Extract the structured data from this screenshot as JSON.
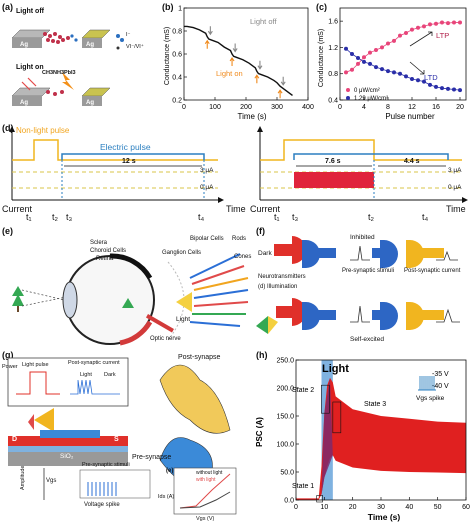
{
  "panel_labels": {
    "a": "(a)",
    "b": "(b)",
    "c": "(c)",
    "d": "(d)",
    "e": "(e)",
    "f": "(f)",
    "g": "(g)",
    "h": "(h)"
  },
  "panel_a": {
    "light_off": "Light off",
    "light_on": "Light on",
    "compound": "CH3NH3PbI3",
    "electrode": "Ag",
    "legend_ion": "I⁻",
    "legend_vac": "VI⁻/VI⁺"
  },
  "panel_b": {
    "chart_data": {
      "type": "line",
      "xlabel": "Time (s)",
      "ylabel": "Conductance (mS)",
      "xlim": [
        0,
        400
      ],
      "ylim": [
        0.2,
        1.0
      ],
      "xticks": [
        0,
        100,
        200,
        300,
        400
      ],
      "yticks": [
        0.2,
        0.4,
        0.6,
        0.8,
        1.0
      ],
      "x": [
        0,
        10,
        30,
        50,
        70,
        75,
        80,
        90,
        110,
        130,
        150,
        155,
        160,
        170,
        190,
        210,
        230,
        235,
        240,
        250,
        270,
        290,
        300,
        310,
        330,
        350
      ],
      "y": [
        0.84,
        0.84,
        0.83,
        0.81,
        0.78,
        0.75,
        0.73,
        0.72,
        0.7,
        0.66,
        0.63,
        0.6,
        0.58,
        0.57,
        0.55,
        0.52,
        0.48,
        0.45,
        0.43,
        0.42,
        0.4,
        0.37,
        0.35,
        0.32,
        0.28,
        0.24
      ],
      "light_on_times": [
        75,
        155,
        235,
        310
      ],
      "light_off_times": [
        85,
        165,
        245,
        320
      ],
      "annotation_off": "Light off",
      "annotation_on": "Light on"
    }
  },
  "panel_c": {
    "chart_data": {
      "type": "scatter",
      "xlabel": "Pulse number",
      "ylabel": "Conductance (mS)",
      "xlim": [
        0,
        21
      ],
      "ylim": [
        0.4,
        1.8
      ],
      "xticks": [
        0,
        4,
        8,
        12,
        16,
        20
      ],
      "yticks": [
        0.4,
        0.8,
        1.2,
        1.6
      ],
      "series": [
        {
          "name": "0 μW/cm²",
          "color": "#e8457a",
          "x": [
            1,
            2,
            3,
            4,
            5,
            6,
            7,
            8,
            9,
            10,
            11,
            12,
            13,
            14,
            15,
            16,
            17,
            18,
            19,
            20
          ],
          "y": [
            0.82,
            0.86,
            0.95,
            1.05,
            1.12,
            1.16,
            1.2,
            1.26,
            1.3,
            1.38,
            1.42,
            1.47,
            1.5,
            1.52,
            1.55,
            1.56,
            1.58,
            1.57,
            1.58,
            1.58
          ]
        },
        {
          "name": "1.29 μW/cm²",
          "color": "#2a2ea8",
          "x": [
            1,
            2,
            3,
            4,
            5,
            6,
            7,
            8,
            9,
            10,
            11,
            12,
            13,
            14,
            15,
            16,
            17,
            18,
            19,
            20
          ],
          "y": [
            1.18,
            1.1,
            1.04,
            0.98,
            0.95,
            0.9,
            0.87,
            0.84,
            0.82,
            0.8,
            0.76,
            0.72,
            0.7,
            0.68,
            0.63,
            0.6,
            0.58,
            0.57,
            0.56,
            0.55
          ]
        }
      ],
      "ltp": "LTP",
      "ltd": "LTD"
    }
  },
  "panel_d": {
    "non_light": "Non-light pulse",
    "electric": "Electric pulse",
    "dur1": "12 s",
    "dur2": "7.6 s",
    "dur3": "4.4 s",
    "level_3": "3 μA",
    "level_0": "0 μA",
    "current": "Current",
    "time": "Time",
    "t1": "t₁",
    "t2": "t₂",
    "t3": "t₃",
    "t4": "t₄"
  },
  "panel_e": {
    "sclera": "Sclera",
    "choroid": "Choroid Cells",
    "retina": "Retina",
    "ganglion": "Ganglion Cells",
    "bipolar": "Bipolar Cells",
    "rods": "Rods",
    "cones": "Cones",
    "light": "Light",
    "optic": "Optic nerve"
  },
  "panel_f": {
    "dark": "Dark",
    "inhibited": "Inhibited",
    "neuro": "Neurotransmitters",
    "pre": "Pre-synaptic stimuli",
    "post": "Post-synaptic current",
    "illum": "(d) Illumination",
    "self": "Self-excited"
  },
  "panel_g": {
    "power": "Power",
    "light_pulse": "Light pulse",
    "psc": "Post-synaptic current",
    "light": "Light",
    "dark": "Dark",
    "post_syn": "Post-synapse",
    "pre_syn": "Pre-synapse",
    "amplitude": "Amplitude",
    "pre_stim": "Pre-synaptic stimuli",
    "vspike": "Voltage spike",
    "inset_label": "(e)",
    "without": "without light",
    "with": "with light",
    "vgs": "Vgs (V)",
    "ids": "Ids (A)",
    "d": "D",
    "s": "S",
    "sio2": "SiO₂",
    "vgs_short": "Vgs"
  },
  "panel_h": {
    "chart_data": {
      "type": "area",
      "xlabel": "Time (s)",
      "ylabel": "PSC (A)",
      "xlim": [
        0,
        60
      ],
      "ylim": [
        0,
        250
      ],
      "xticks": [
        0,
        10,
        20,
        30,
        40,
        50,
        60
      ],
      "yticks": [
        0,
        50,
        100,
        150,
        200,
        250
      ],
      "ytick_labels": [
        "0.0",
        "50.0",
        "100.0",
        "150.0",
        "200.0",
        "250.0"
      ],
      "light_window": [
        9,
        13
      ],
      "upper_envelope_x": [
        0,
        8,
        9,
        10,
        11,
        12,
        13,
        14,
        20,
        30,
        40,
        50,
        60
      ],
      "upper_envelope_y": [
        3,
        3,
        60,
        155,
        205,
        218,
        210,
        185,
        162,
        150,
        145,
        140,
        138
      ],
      "lower_envelope_x": [
        0,
        8,
        9,
        10,
        11,
        12,
        13,
        14,
        20,
        30,
        40,
        50,
        60
      ],
      "lower_envelope_y": [
        0,
        0,
        10,
        40,
        60,
        75,
        80,
        70,
        58,
        52,
        50,
        49,
        48
      ],
      "title": "Light",
      "state1": "State 1",
      "state2": "State 2",
      "state3": "State 3",
      "v1": "-35 V",
      "v2": "-40 V",
      "spike": "Vgs spike",
      "colors": {
        "fill": "#e02020",
        "light": "#7fb2e0",
        "state2": "#7d2a6d"
      }
    }
  }
}
